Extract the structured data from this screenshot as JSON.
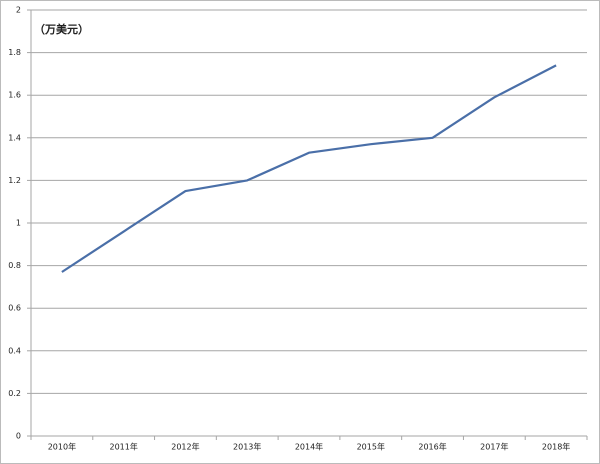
{
  "chart_data": {
    "type": "line",
    "annotation": "（万美元）",
    "categories": [
      "2010年",
      "2011年",
      "2012年",
      "2013年",
      "2014年",
      "2015年",
      "2016年",
      "2017年",
      "2018年"
    ],
    "values": [
      0.77,
      0.96,
      1.15,
      1.2,
      1.33,
      1.37,
      1.4,
      1.59,
      1.74
    ],
    "color": "#4a6fa8",
    "ylim": [
      0,
      2
    ],
    "yticks": [
      0,
      0.2,
      0.4,
      0.6,
      0.8,
      1,
      1.2,
      1.4,
      1.6,
      1.8,
      2
    ],
    "grid": true
  }
}
